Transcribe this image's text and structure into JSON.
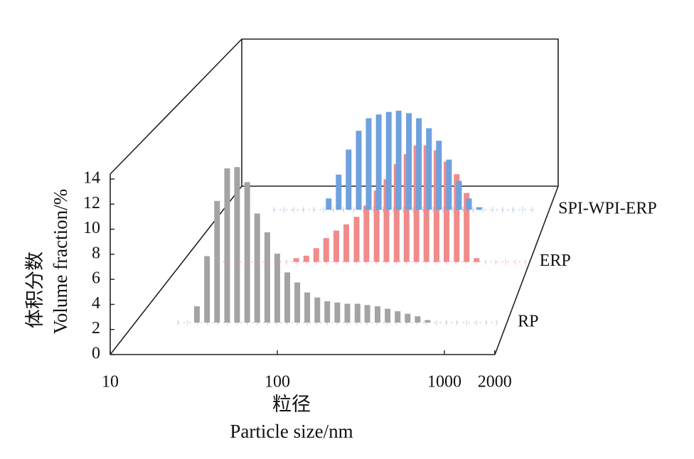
{
  "chart_data": {
    "type": "bar",
    "x_label": [
      "粒径",
      "Particle size/nm"
    ],
    "y_label": [
      "体积分数",
      "Volume fraction/%"
    ],
    "xlim": [
      10,
      2000
    ],
    "xscale": "log",
    "xticks": [
      10,
      100,
      1000,
      2000
    ],
    "ylim": [
      0,
      14
    ],
    "yticks": [
      0,
      2,
      4,
      6,
      8,
      10,
      12,
      14
    ],
    "series": [
      {
        "name": "RP",
        "color": "#a3a3a3",
        "x": [
          23.4,
          26.9,
          30.9,
          35.5,
          40.7,
          46.8,
          53.7,
          61.7,
          70.8,
          81.3,
          93.3,
          107,
          123,
          141,
          162,
          186,
          214,
          245,
          282,
          324,
          372,
          427,
          490,
          562
        ],
        "values": [
          1.3,
          5.3,
          9.7,
          12.3,
          12.4,
          11.2,
          8.7,
          7.2,
          5.5,
          4.0,
          3.2,
          2.4,
          2.0,
          1.7,
          1.6,
          1.5,
          1.5,
          1.4,
          1.3,
          1.1,
          0.9,
          0.7,
          0.5,
          0.2
        ]
      },
      {
        "name": "ERP",
        "color": "#f08b8b",
        "x": [
          47.9,
          55.0,
          63.1,
          72.4,
          83.2,
          95.5,
          110,
          126,
          145,
          166,
          191,
          219,
          251,
          288,
          331,
          380,
          437,
          501,
          575
        ],
        "values": [
          0.3,
          0.5,
          1.1,
          1.9,
          2.5,
          3.0,
          3.6,
          4.5,
          5.7,
          6.6,
          7.8,
          8.6,
          9.3,
          9.3,
          8.9,
          8.0,
          7.0,
          5.5,
          0.3
        ]
      },
      {
        "name": "SPI-WPI-ERP",
        "color": "#6ea1de",
        "x": [
          42.7,
          49.0,
          56.2,
          64.6,
          74.1,
          85.1,
          97.7,
          112,
          129,
          148,
          170,
          195,
          224,
          257,
          295,
          339
        ],
        "values": [
          0.9,
          2.8,
          4.8,
          6.3,
          7.3,
          7.6,
          7.8,
          7.9,
          7.7,
          7.3,
          6.5,
          5.5,
          4.0,
          2.3,
          0.9,
          0.2
        ]
      }
    ]
  }
}
